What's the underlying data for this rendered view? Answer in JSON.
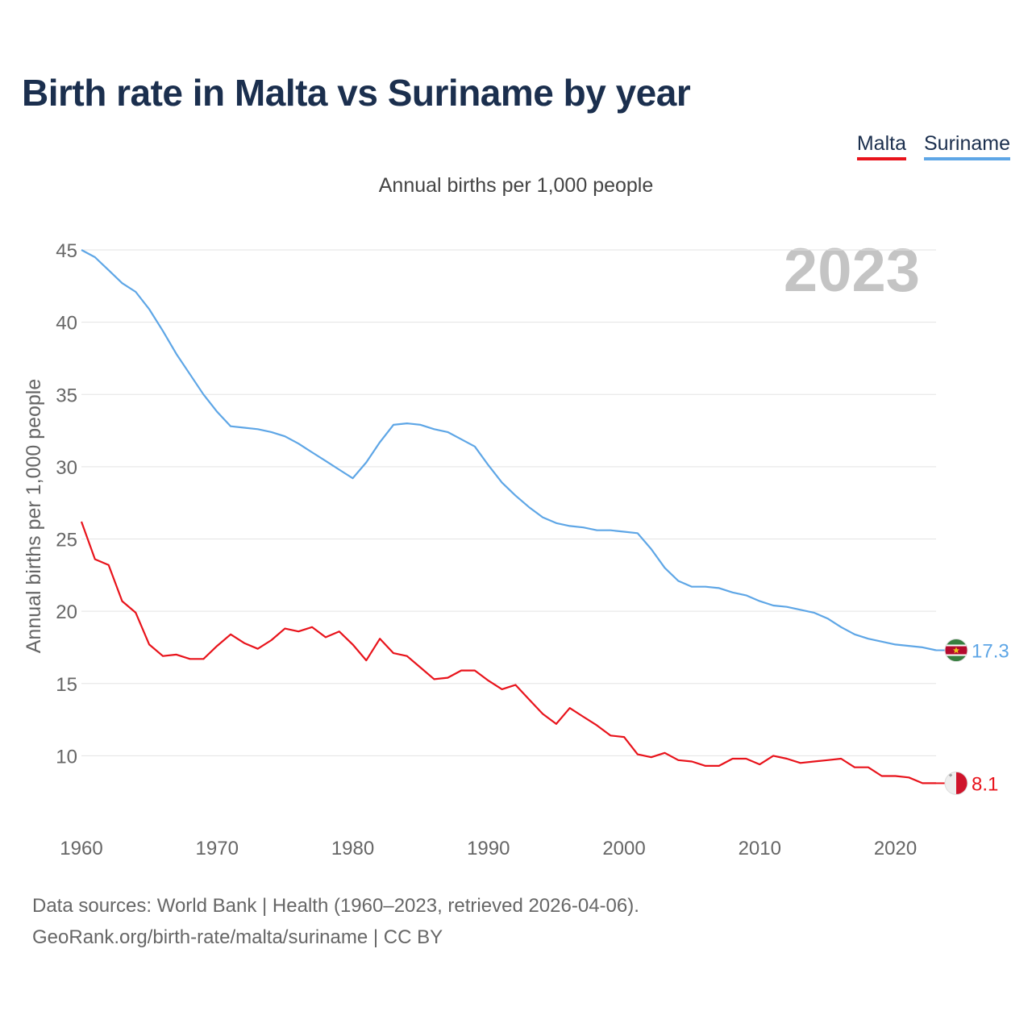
{
  "title": "Birth rate in Malta vs Suriname by year",
  "subtitle": "Annual births per 1,000 people",
  "watermark_year": "2023",
  "legend": [
    {
      "label": "Malta",
      "color": "#e8131b"
    },
    {
      "label": "Suriname",
      "color": "#5ea6e6"
    }
  ],
  "footer": {
    "line1": "Data sources: World Bank | Health (1960–2023, retrieved 2026-04-06).",
    "line2": "GeoRank.org/birth-rate/malta/suriname | CC BY"
  },
  "chart_data": {
    "type": "line",
    "title": "Birth rate in Malta vs Suriname by year",
    "xlabel": "",
    "ylabel": "Annual births per 1,000 people",
    "xlim": [
      1960,
      2023
    ],
    "ylim": [
      5,
      45
    ],
    "yticks": [
      10,
      15,
      20,
      25,
      30,
      35,
      40,
      45
    ],
    "xticks": [
      1960,
      1970,
      1980,
      1990,
      2000,
      2010,
      2020
    ],
    "grid": true,
    "x": [
      1960,
      1961,
      1962,
      1963,
      1964,
      1965,
      1966,
      1967,
      1968,
      1969,
      1970,
      1971,
      1972,
      1973,
      1974,
      1975,
      1976,
      1977,
      1978,
      1979,
      1980,
      1981,
      1982,
      1983,
      1984,
      1985,
      1986,
      1987,
      1988,
      1989,
      1990,
      1991,
      1992,
      1993,
      1994,
      1995,
      1996,
      1997,
      1998,
      1999,
      2000,
      2001,
      2002,
      2003,
      2004,
      2005,
      2006,
      2007,
      2008,
      2009,
      2010,
      2011,
      2012,
      2013,
      2014,
      2015,
      2016,
      2017,
      2018,
      2019,
      2020,
      2021,
      2022,
      2023
    ],
    "series": [
      {
        "name": "Malta",
        "color": "#e8131b",
        "end_label": "8.1",
        "values": [
          26.2,
          23.6,
          23.2,
          20.7,
          19.9,
          17.7,
          16.9,
          17.0,
          16.7,
          16.7,
          17.6,
          18.4,
          17.8,
          17.4,
          18.0,
          18.8,
          18.6,
          18.9,
          18.2,
          18.6,
          17.7,
          16.6,
          18.1,
          17.1,
          16.9,
          16.1,
          15.3,
          15.4,
          15.9,
          15.9,
          15.2,
          14.6,
          14.9,
          13.9,
          12.9,
          12.2,
          13.3,
          12.7,
          12.1,
          11.4,
          11.3,
          10.1,
          9.9,
          10.2,
          9.7,
          9.6,
          9.3,
          9.3,
          9.8,
          9.8,
          9.4,
          10.0,
          9.8,
          9.5,
          9.6,
          9.7,
          9.8,
          9.2,
          9.2,
          8.6,
          8.6,
          8.5,
          8.1,
          8.1
        ]
      },
      {
        "name": "Suriname",
        "color": "#5ea6e6",
        "end_label": "17.3",
        "values": [
          45.0,
          44.5,
          43.6,
          42.7,
          42.1,
          40.9,
          39.4,
          37.8,
          36.4,
          35.0,
          33.8,
          32.8,
          32.7,
          32.6,
          32.4,
          32.1,
          31.6,
          31.0,
          30.4,
          29.8,
          29.2,
          30.3,
          31.7,
          32.9,
          33.0,
          32.9,
          32.6,
          32.4,
          31.9,
          31.4,
          30.1,
          28.9,
          28.0,
          27.2,
          26.5,
          26.1,
          25.9,
          25.8,
          25.6,
          25.6,
          25.5,
          25.4,
          24.3,
          23.0,
          22.1,
          21.7,
          21.7,
          21.6,
          21.3,
          21.1,
          20.7,
          20.4,
          20.3,
          20.1,
          19.9,
          19.5,
          18.9,
          18.4,
          18.1,
          17.9,
          17.7,
          17.6,
          17.5,
          17.3
        ]
      }
    ]
  }
}
